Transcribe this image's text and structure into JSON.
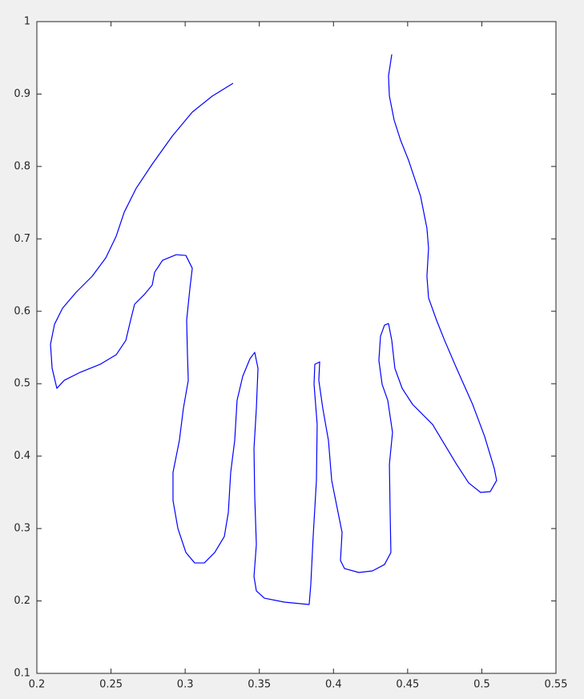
{
  "chart_data": {
    "type": "line",
    "color": "#0000ff",
    "x": [
      0.3323,
      0.3183,
      0.3048,
      0.2913,
      0.2778,
      0.267,
      0.2589,
      0.2535,
      0.2465,
      0.2373,
      0.2265,
      0.2173,
      0.2119,
      0.2092,
      0.2103,
      0.2135,
      0.2184,
      0.2292,
      0.2427,
      0.2535,
      0.26,
      0.2632,
      0.2659,
      0.2724,
      0.2778,
      0.2794,
      0.2848,
      0.294,
      0.3005,
      0.3048,
      0.3032,
      0.301,
      0.3015,
      0.3021,
      0.2988,
      0.2961,
      0.2918,
      0.2918,
      0.2951,
      0.3005,
      0.3064,
      0.3129,
      0.3199,
      0.3264,
      0.3291,
      0.3307,
      0.3334,
      0.335,
      0.3388,
      0.3437,
      0.3469,
      0.3491,
      0.348,
      0.3464,
      0.3469,
      0.348,
      0.3464,
      0.348,
      0.3534,
      0.3669,
      0.3836,
      0.3847,
      0.3863,
      0.3885,
      0.389,
      0.3869,
      0.3874,
      0.3907,
      0.3901,
      0.3928,
      0.3966,
      0.3988,
      0.402,
      0.4058,
      0.4047,
      0.4074,
      0.4171,
      0.4263,
      0.4344,
      0.4387,
      0.4382,
      0.4377,
      0.4398,
      0.4366,
      0.4328,
      0.4306,
      0.4317,
      0.4344,
      0.4371,
      0.4393,
      0.4414,
      0.4463,
      0.4533,
      0.4668,
      0.4749,
      0.483,
      0.4911,
      0.4992,
      0.5057,
      0.51,
      0.5084,
      0.5019,
      0.4938,
      0.483,
      0.4749,
      0.4695,
      0.4641,
      0.463,
      0.4641,
      0.463,
      0.4587,
      0.4506,
      0.4452,
      0.4409,
      0.4377,
      0.4371,
      0.4393
    ],
    "values": [
      0.9149,
      0.8972,
      0.8751,
      0.8419,
      0.8032,
      0.77,
      0.7368,
      0.7037,
      0.6738,
      0.6484,
      0.6263,
      0.6042,
      0.582,
      0.5544,
      0.5212,
      0.4936,
      0.5046,
      0.5157,
      0.5268,
      0.54,
      0.5599,
      0.5876,
      0.6097,
      0.623,
      0.6362,
      0.6539,
      0.6705,
      0.6782,
      0.6771,
      0.6594,
      0.6318,
      0.5876,
      0.5433,
      0.5046,
      0.4659,
      0.4217,
      0.3775,
      0.3388,
      0.3001,
      0.2669,
      0.2525,
      0.2525,
      0.2669,
      0.289,
      0.3222,
      0.3775,
      0.4217,
      0.477,
      0.5102,
      0.5345,
      0.5433,
      0.5212,
      0.4659,
      0.4107,
      0.3443,
      0.278,
      0.2338,
      0.2139,
      0.2039,
      0.1984,
      0.1951,
      0.2227,
      0.289,
      0.3664,
      0.4438,
      0.4991,
      0.5268,
      0.5301,
      0.5046,
      0.4659,
      0.4217,
      0.3664,
      0.3333,
      0.2946,
      0.2559,
      0.2448,
      0.2393,
      0.2415,
      0.2503,
      0.2669,
      0.3222,
      0.3886,
      0.4328,
      0.477,
      0.4991,
      0.5323,
      0.5655,
      0.5809,
      0.5831,
      0.5599,
      0.5212,
      0.4936,
      0.4715,
      0.4438,
      0.4162,
      0.3886,
      0.3631,
      0.3499,
      0.351,
      0.3664,
      0.383,
      0.4272,
      0.4715,
      0.5212,
      0.5599,
      0.5876,
      0.6185,
      0.6484,
      0.6871,
      0.7147,
      0.759,
      0.8087,
      0.8364,
      0.864,
      0.8972,
      0.9248,
      0.9547
    ],
    "xlim": [
      0.2,
      0.55
    ],
    "ylim": [
      0.1,
      1
    ],
    "xticks": [
      0.2,
      0.25,
      0.3,
      0.35,
      0.4,
      0.45,
      0.5,
      0.55
    ],
    "yticks": [
      0.1,
      0.2,
      0.3,
      0.4,
      0.5,
      0.6,
      0.7,
      0.8,
      0.9,
      1
    ]
  }
}
